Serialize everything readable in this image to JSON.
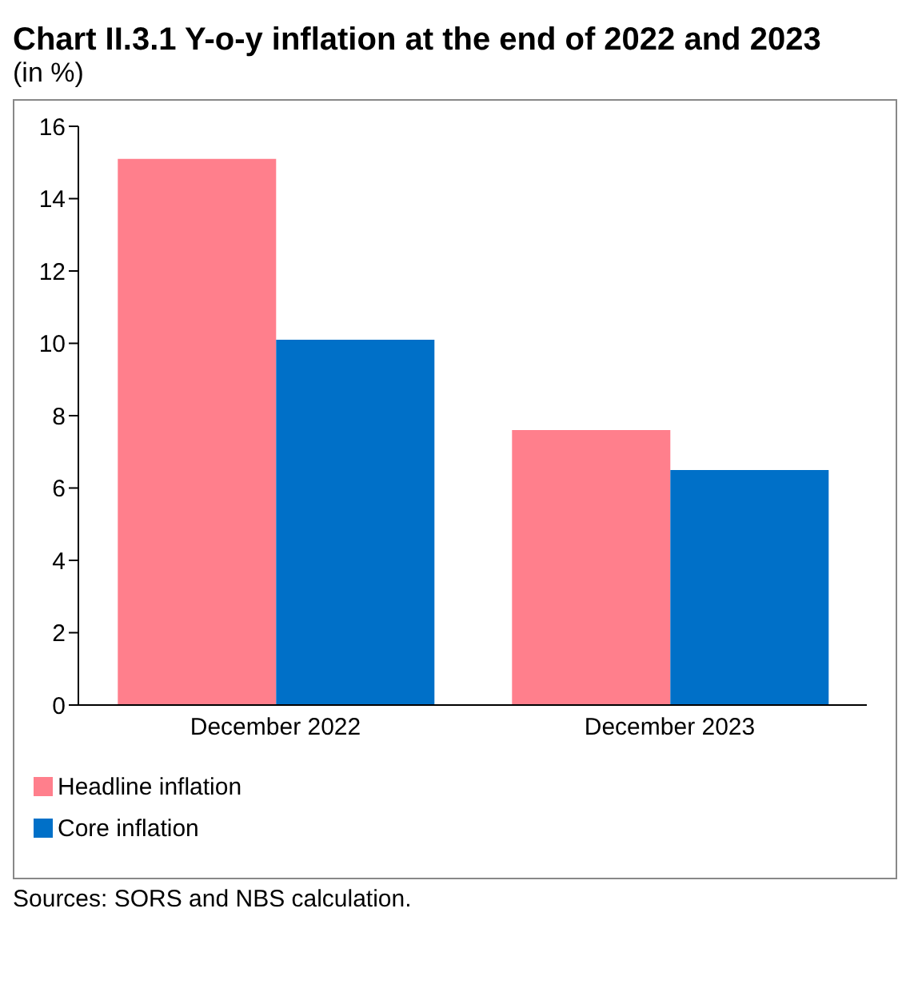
{
  "chart_data": {
    "type": "bar",
    "title": "Chart II.3.1 Y-o-y inflation at the end of 2022 and 2023",
    "subtitle": "(in %)",
    "categories": [
      "December 2022",
      "December 2023"
    ],
    "series": [
      {
        "name": "Headline inflation",
        "color": "#ff7f8c",
        "values": [
          15.1,
          7.6
        ]
      },
      {
        "name": "Core inflation",
        "color": "#0070c8",
        "values": [
          10.1,
          6.5
        ]
      }
    ],
    "ylim": [
      0,
      16
    ],
    "yticks": [
      0,
      2,
      4,
      6,
      8,
      10,
      12,
      14,
      16
    ],
    "legend": "bottom",
    "annotations": [
      "Sources: SORS and NBS calculation."
    ]
  }
}
